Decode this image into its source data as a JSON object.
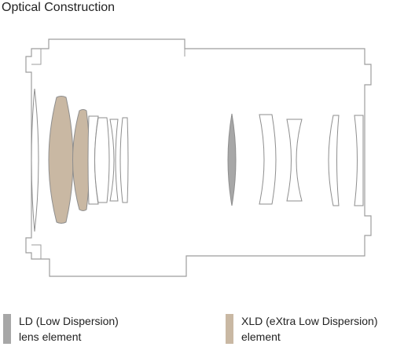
{
  "title": "Optical Construction",
  "colors": {
    "outline": "#9e9e9e",
    "ld": "#a7a7a7",
    "xld": "#c9b8a3",
    "clear_glass": "#ffffff"
  },
  "lens_elements": [
    {
      "id": "e1",
      "group": "front",
      "type": "normal"
    },
    {
      "id": "e2",
      "group": "front",
      "type": "xld"
    },
    {
      "id": "e3",
      "group": "front",
      "type": "xld"
    },
    {
      "id": "e4",
      "group": "front",
      "type": "normal"
    },
    {
      "id": "e5",
      "group": "front",
      "type": "normal"
    },
    {
      "id": "e6",
      "group": "front",
      "type": "normal"
    },
    {
      "id": "e7",
      "group": "front",
      "type": "normal"
    },
    {
      "id": "e8",
      "group": "rear",
      "type": "ld"
    },
    {
      "id": "e9",
      "group": "rear",
      "type": "normal"
    },
    {
      "id": "e10",
      "group": "rear",
      "type": "normal"
    },
    {
      "id": "e11",
      "group": "rear",
      "type": "normal"
    },
    {
      "id": "e12",
      "group": "rear",
      "type": "normal"
    }
  ],
  "legend": [
    {
      "key": "ld",
      "line1": "LD (Low Dispersion)",
      "line2": "lens element"
    },
    {
      "key": "xld",
      "line1": "XLD (eXtra Low Dispersion)",
      "line2": "element"
    }
  ]
}
